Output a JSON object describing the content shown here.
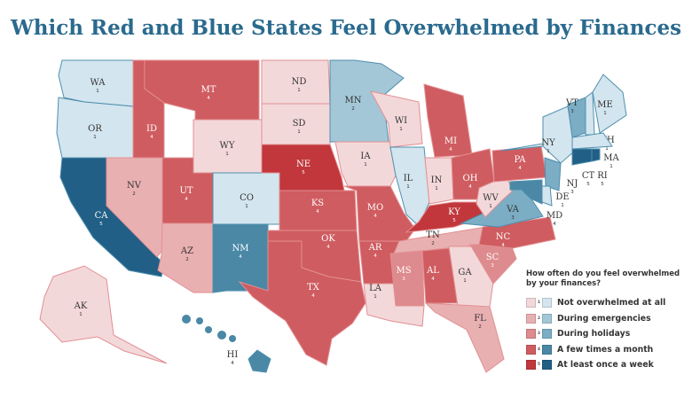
{
  "title": "Which Red and Blue States Feel Overwhelmed by Finances",
  "colors": {
    "red": [
      "#f3d8da",
      "#e9b0b2",
      "#dd8b8e",
      "#cf5c60",
      "#c1373b"
    ],
    "blue": [
      "#d3e5ee",
      "#a3c7d7",
      "#7badc4",
      "#4a88a6",
      "#215f86"
    ],
    "label_dark": "#333333",
    "label_light": "#ffffff"
  },
  "legend": {
    "question": "How often do you feel overwhelmed by your finances?",
    "items": [
      {
        "value": "1",
        "label": "Not overwhelmed at all"
      },
      {
        "value": "2",
        "label": "During emergencies"
      },
      {
        "value": "3",
        "label": "During holidays"
      },
      {
        "value": "4",
        "label": "A few times a month"
      },
      {
        "value": "5",
        "label": "At least once a week"
      }
    ]
  },
  "states": [
    {
      "abbr": "WA",
      "value": 1,
      "party": "blue"
    },
    {
      "abbr": "OR",
      "value": 1,
      "party": "blue"
    },
    {
      "abbr": "CA",
      "value": 5,
      "party": "blue"
    },
    {
      "abbr": "NV",
      "value": 2,
      "party": "red"
    },
    {
      "abbr": "ID",
      "value": 4,
      "party": "red"
    },
    {
      "abbr": "MT",
      "value": 4,
      "party": "red"
    },
    {
      "abbr": "WY",
      "value": 1,
      "party": "red"
    },
    {
      "abbr": "UT",
      "value": 4,
      "party": "red"
    },
    {
      "abbr": "CO",
      "value": 1,
      "party": "blue"
    },
    {
      "abbr": "AZ",
      "value": 2,
      "party": "red"
    },
    {
      "abbr": "NM",
      "value": 4,
      "party": "blue"
    },
    {
      "abbr": "ND",
      "value": 1,
      "party": "red"
    },
    {
      "abbr": "SD",
      "value": 1,
      "party": "red"
    },
    {
      "abbr": "NE",
      "value": 5,
      "party": "red"
    },
    {
      "abbr": "KS",
      "value": 4,
      "party": "red"
    },
    {
      "abbr": "OK",
      "value": 4,
      "party": "red"
    },
    {
      "abbr": "TX",
      "value": 4,
      "party": "red"
    },
    {
      "abbr": "MN",
      "value": 2,
      "party": "blue"
    },
    {
      "abbr": "IA",
      "value": 1,
      "party": "red"
    },
    {
      "abbr": "MO",
      "value": 4,
      "party": "red"
    },
    {
      "abbr": "AR",
      "value": 4,
      "party": "red"
    },
    {
      "abbr": "LA",
      "value": 1,
      "party": "red"
    },
    {
      "abbr": "WI",
      "value": 1,
      "party": "red"
    },
    {
      "abbr": "IL",
      "value": 1,
      "party": "blue"
    },
    {
      "abbr": "MI",
      "value": 4,
      "party": "red"
    },
    {
      "abbr": "IN",
      "value": 1,
      "party": "red"
    },
    {
      "abbr": "OH",
      "value": 4,
      "party": "red"
    },
    {
      "abbr": "KY",
      "value": 5,
      "party": "red"
    },
    {
      "abbr": "TN",
      "value": 2,
      "party": "red"
    },
    {
      "abbr": "MS",
      "value": 3,
      "party": "red"
    },
    {
      "abbr": "AL",
      "value": 4,
      "party": "red"
    },
    {
      "abbr": "GA",
      "value": 1,
      "party": "red"
    },
    {
      "abbr": "FL",
      "value": 2,
      "party": "red"
    },
    {
      "abbr": "SC",
      "value": 3,
      "party": "red"
    },
    {
      "abbr": "NC",
      "value": 4,
      "party": "red"
    },
    {
      "abbr": "VA",
      "value": 3,
      "party": "blue"
    },
    {
      "abbr": "WV",
      "value": 1,
      "party": "red"
    },
    {
      "abbr": "PA",
      "value": 4,
      "party": "red"
    },
    {
      "abbr": "NY",
      "value": 1,
      "party": "blue"
    },
    {
      "abbr": "VT",
      "value": 3,
      "party": "blue"
    },
    {
      "abbr": "NH",
      "value": 1,
      "party": "blue"
    },
    {
      "abbr": "ME",
      "value": 1,
      "party": "blue"
    },
    {
      "abbr": "MA",
      "value": 1,
      "party": "blue"
    },
    {
      "abbr": "CT",
      "value": 5,
      "party": "blue"
    },
    {
      "abbr": "RI",
      "value": 5,
      "party": "blue"
    },
    {
      "abbr": "NJ",
      "value": 3,
      "party": "blue"
    },
    {
      "abbr": "DE",
      "value": 1,
      "party": "blue"
    },
    {
      "abbr": "MD",
      "value": 4,
      "party": "blue"
    },
    {
      "abbr": "AK",
      "value": 1,
      "party": "red"
    },
    {
      "abbr": "HI",
      "value": 4,
      "party": "blue"
    }
  ]
}
